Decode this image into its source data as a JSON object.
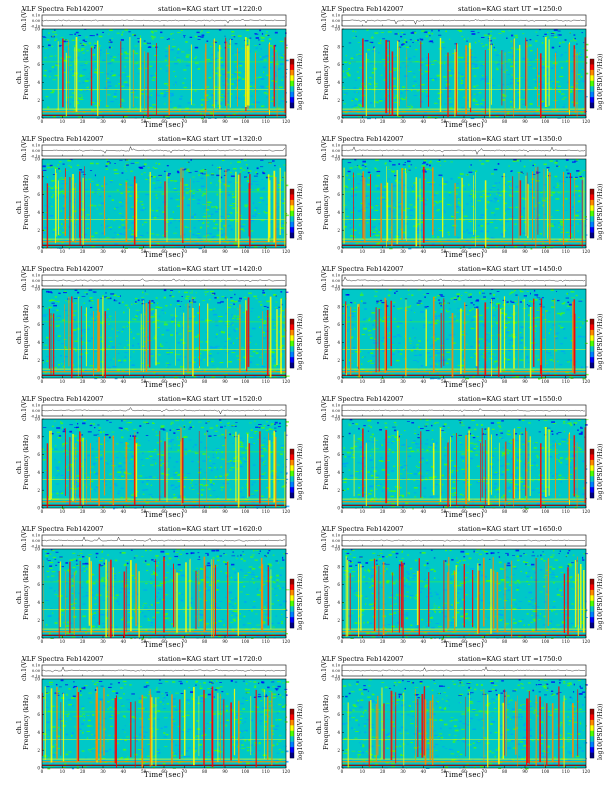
{
  "panel_labels": {
    "title_prefix": "VLF Spectra",
    "date": "Feb142007",
    "station": "station=KAG",
    "start_label": "start  UT  =",
    "top_ylabel": "ch.1(V)",
    "spec_ylabel": "Frequency  (kHz)",
    "spec_ylabel_ch": "ch.1",
    "cbar_label": "log10(PSD(V²/Hz))",
    "xlabel": "Time  (sec)"
  },
  "colors": {
    "background": "#00c8c8",
    "bright_green": "#4cff00",
    "yellow": "#ffff00",
    "orange": "#ff8800",
    "red": "#ff0000",
    "dark_red": "#990000",
    "blue": "#0000ff"
  },
  "chart_data": [
    {
      "type": "heatmap",
      "start_ut": "1220:0",
      "x_range": [
        0,
        120
      ],
      "y_range": [
        0,
        10
      ],
      "top_y_range": [
        -0.1,
        0.1
      ],
      "x_ticks": [
        0,
        10,
        20,
        30,
        40,
        50,
        60,
        70,
        80,
        90,
        100,
        110,
        120
      ],
      "y_ticks": [
        0,
        2,
        4,
        6,
        8,
        10
      ],
      "top_y_ticks": [
        "0.10",
        "0.00",
        "-0.10"
      ],
      "cbar_ticks": []
    },
    {
      "type": "heatmap",
      "start_ut": "1250:0",
      "x_range": [
        0,
        120
      ],
      "y_range": [
        0,
        10
      ],
      "top_y_range": [
        -0.1,
        0.1
      ],
      "x_ticks": [
        0,
        10,
        20,
        30,
        40,
        50,
        60,
        70,
        80,
        90,
        100,
        110,
        120
      ],
      "y_ticks": [
        0,
        2,
        4,
        6,
        8,
        10
      ],
      "top_y_ticks": [
        "0.10",
        "0.00",
        "-0.10"
      ]
    },
    {
      "type": "heatmap",
      "start_ut": "1320:0",
      "x_range": [
        0,
        120
      ],
      "y_range": [
        0,
        10
      ],
      "top_y_range": [
        -0.1,
        0.1
      ],
      "x_ticks": [
        0,
        10,
        20,
        30,
        40,
        50,
        60,
        70,
        80,
        90,
        100,
        110,
        120
      ],
      "y_ticks": [
        0,
        2,
        4,
        6,
        8,
        10
      ],
      "top_y_ticks": [
        "0.10",
        "0.00",
        "-0.10"
      ]
    },
    {
      "type": "heatmap",
      "start_ut": "1350:0",
      "x_range": [
        0,
        120
      ],
      "y_range": [
        0,
        10
      ],
      "top_y_range": [
        -0.1,
        0.1
      ],
      "x_ticks": [
        0,
        10,
        20,
        30,
        40,
        50,
        60,
        70,
        80,
        90,
        100,
        110,
        120
      ],
      "y_ticks": [
        0,
        2,
        4,
        6,
        8,
        10
      ],
      "top_y_ticks": [
        "0.10",
        "0.00",
        "-0.10"
      ]
    },
    {
      "type": "heatmap",
      "start_ut": "1420:0",
      "x_range": [
        0,
        120
      ],
      "y_range": [
        0,
        10
      ],
      "top_y_range": [
        -0.1,
        0.1
      ],
      "x_ticks": [
        0,
        10,
        20,
        30,
        40,
        50,
        60,
        70,
        80,
        90,
        100,
        110,
        120
      ],
      "y_ticks": [
        0,
        2,
        4,
        6,
        8,
        10
      ],
      "top_y_ticks": [
        "0.10",
        "0.00",
        "-0.10"
      ]
    },
    {
      "type": "heatmap",
      "start_ut": "1450:0",
      "x_range": [
        0,
        120
      ],
      "y_range": [
        0,
        10
      ],
      "top_y_range": [
        -0.1,
        0.1
      ],
      "x_ticks": [
        0,
        10,
        20,
        30,
        40,
        50,
        60,
        70,
        80,
        90,
        100,
        110,
        120
      ],
      "y_ticks": [
        0,
        2,
        4,
        6,
        8,
        10
      ],
      "top_y_ticks": [
        "0.10",
        "0.00",
        "-0.10"
      ]
    },
    {
      "type": "heatmap",
      "start_ut": "1520:0",
      "x_range": [
        0,
        120
      ],
      "y_range": [
        0,
        10
      ],
      "top_y_range": [
        -0.1,
        0.1
      ],
      "x_ticks": [
        0,
        10,
        20,
        30,
        40,
        50,
        60,
        70,
        80,
        90,
        100,
        110,
        120
      ],
      "y_ticks": [
        0,
        2,
        4,
        6,
        8,
        10
      ],
      "top_y_ticks": [
        "0.10",
        "0.00",
        "-0.10"
      ]
    },
    {
      "type": "heatmap",
      "start_ut": "1550:0",
      "x_range": [
        0,
        120
      ],
      "y_range": [
        0,
        10
      ],
      "top_y_range": [
        -0.1,
        0.1
      ],
      "x_ticks": [
        0,
        10,
        20,
        30,
        40,
        50,
        60,
        70,
        80,
        90,
        100,
        110,
        120
      ],
      "y_ticks": [
        0,
        2,
        4,
        6,
        8,
        10
      ],
      "top_y_ticks": [
        "0.10",
        "0.00",
        "-0.10"
      ]
    },
    {
      "type": "heatmap",
      "start_ut": "1620:0",
      "x_range": [
        0,
        120
      ],
      "y_range": [
        0,
        10
      ],
      "top_y_range": [
        -0.1,
        0.1
      ],
      "x_ticks": [
        0,
        10,
        20,
        30,
        40,
        50,
        60,
        70,
        80,
        90,
        100,
        110,
        120
      ],
      "y_ticks": [
        0,
        2,
        4,
        6,
        8,
        10
      ],
      "top_y_ticks": [
        "0.10",
        "0.00",
        "-0.10"
      ]
    },
    {
      "type": "heatmap",
      "start_ut": "1650:0",
      "x_range": [
        0,
        120
      ],
      "y_range": [
        0,
        10
      ],
      "top_y_range": [
        -0.1,
        0.1
      ],
      "x_ticks": [
        0,
        10,
        20,
        30,
        40,
        50,
        60,
        70,
        80,
        90,
        100,
        110,
        120
      ],
      "y_ticks": [
        0,
        2,
        4,
        6,
        8,
        10
      ],
      "top_y_ticks": [
        "0.10",
        "0.00",
        "-0.10"
      ]
    },
    {
      "type": "heatmap",
      "start_ut": "1720:0",
      "x_range": [
        0,
        120
      ],
      "y_range": [
        0,
        10
      ],
      "top_y_range": [
        -0.1,
        0.1
      ],
      "x_ticks": [
        0,
        10,
        20,
        30,
        40,
        50,
        60,
        70,
        80,
        90,
        100,
        110,
        120
      ],
      "y_ticks": [
        0,
        2,
        4,
        6,
        8,
        10
      ],
      "top_y_ticks": [
        "0.10",
        "0.00",
        "-0.10"
      ]
    },
    {
      "type": "heatmap",
      "start_ut": "1750:0",
      "x_range": [
        0,
        120
      ],
      "y_range": [
        0,
        10
      ],
      "top_y_range": [
        -0.1,
        0.1
      ],
      "x_ticks": [
        0,
        10,
        20,
        30,
        40,
        50,
        60,
        70,
        80,
        90,
        100,
        110,
        120
      ],
      "y_ticks": [
        0,
        2,
        4,
        6,
        8,
        10
      ],
      "top_y_ticks": [
        "0.10",
        "0.00",
        "-0.10"
      ]
    }
  ]
}
